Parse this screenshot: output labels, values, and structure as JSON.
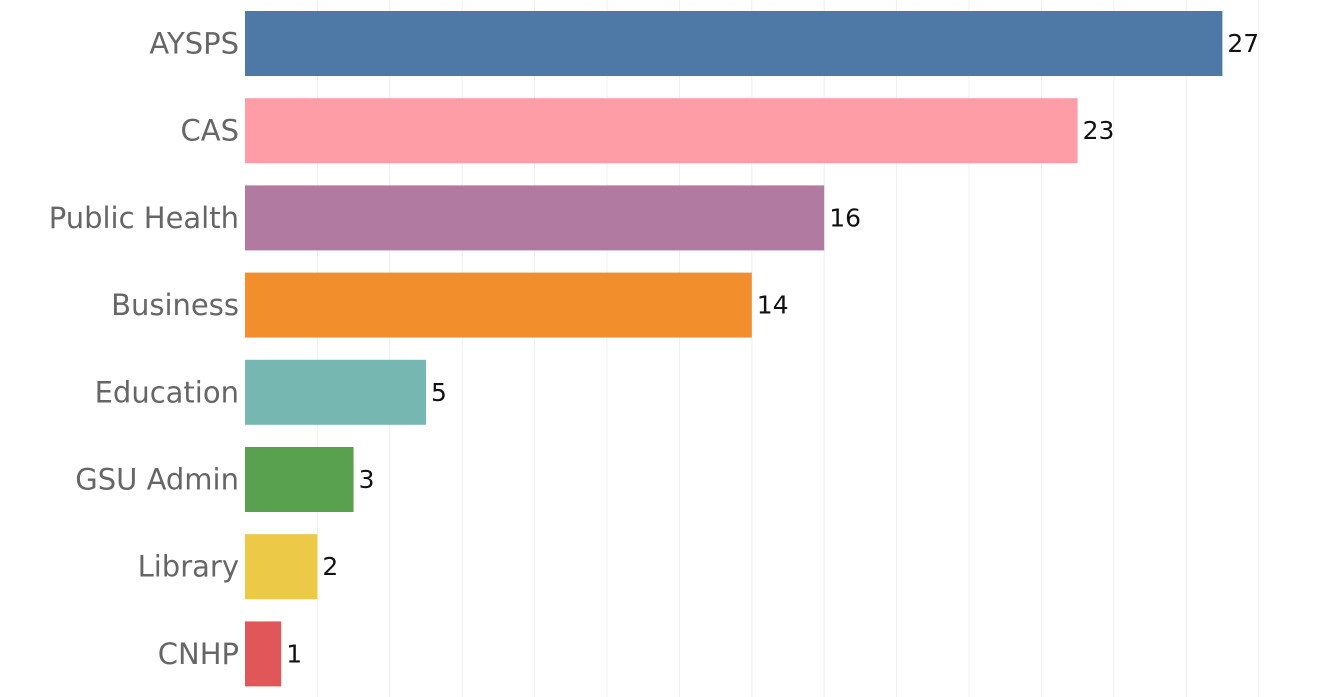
{
  "chart_data": {
    "type": "bar",
    "orientation": "horizontal",
    "title": "",
    "xlabel": "",
    "ylabel": "",
    "categories": [
      "AYSPS",
      "CAS",
      "Public Health",
      "Business",
      "Education",
      "GSU Admin",
      "Library",
      "CNHP"
    ],
    "values": [
      27,
      23,
      16,
      14,
      5,
      3,
      2,
      1
    ],
    "value_labels": [
      "27",
      "23",
      "16",
      "14",
      "5",
      "3",
      "2",
      "1"
    ],
    "colors": [
      "#4e79a7",
      "#ff9da7",
      "#b07aa1",
      "#f28e2b",
      "#76b7b2",
      "#59a14f",
      "#edc948",
      "#e15759"
    ],
    "xlim": [
      0,
      28
    ],
    "grid": true,
    "legend": "none"
  }
}
